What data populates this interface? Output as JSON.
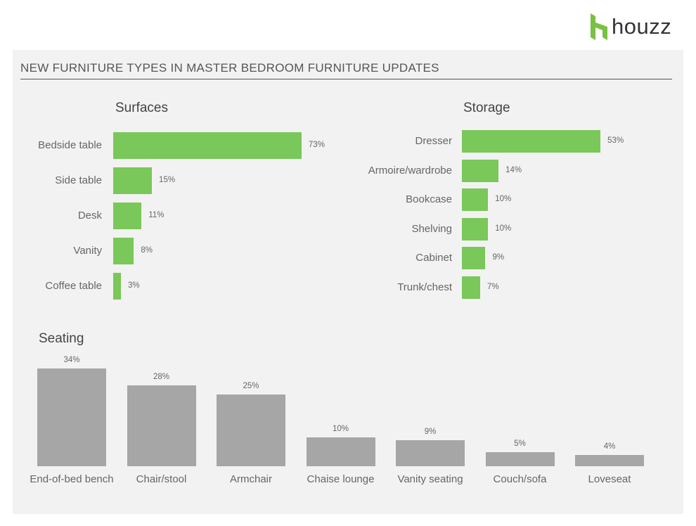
{
  "brand": {
    "name": "houzz",
    "accent_color": "#7ac143",
    "icon": "houzz-logo-icon"
  },
  "title": "NEW FURNITURE TYPES IN MASTER BEDROOM FURNITURE UPDATES",
  "colors": {
    "surfaces_bar": "#7ac75a",
    "storage_bar": "#7ac75a",
    "seating_bar": "#a6a6a6"
  },
  "chart_data": [
    {
      "type": "bar",
      "orientation": "horizontal",
      "title": "Surfaces",
      "categories": [
        "Bedside table",
        "Side table",
        "Desk",
        "Vanity",
        "Coffee table"
      ],
      "values": [
        73,
        15,
        11,
        8,
        3
      ],
      "labels": [
        "73%",
        "15%",
        "11%",
        "8%",
        "3%"
      ],
      "unit": "%"
    },
    {
      "type": "bar",
      "orientation": "horizontal",
      "title": "Storage",
      "categories": [
        "Dresser",
        "Armoire/wardrobe",
        "Bookcase",
        "Shelving",
        "Cabinet",
        "Trunk/chest"
      ],
      "values": [
        53,
        14,
        10,
        10,
        9,
        7
      ],
      "labels": [
        "53%",
        "14%",
        "10%",
        "10%",
        "9%",
        "7%"
      ],
      "unit": "%"
    },
    {
      "type": "bar",
      "orientation": "vertical",
      "title": "Seating",
      "categories": [
        "End-of-bed bench",
        "Chair/stool",
        "Armchair",
        "Chaise lounge",
        "Vanity seating",
        "Couch/sofa",
        "Loveseat"
      ],
      "values": [
        34,
        28,
        25,
        10,
        9,
        5,
        4
      ],
      "labels": [
        "34%",
        "28%",
        "25%",
        "10%",
        "9%",
        "5%",
        "4%"
      ],
      "unit": "%"
    }
  ]
}
